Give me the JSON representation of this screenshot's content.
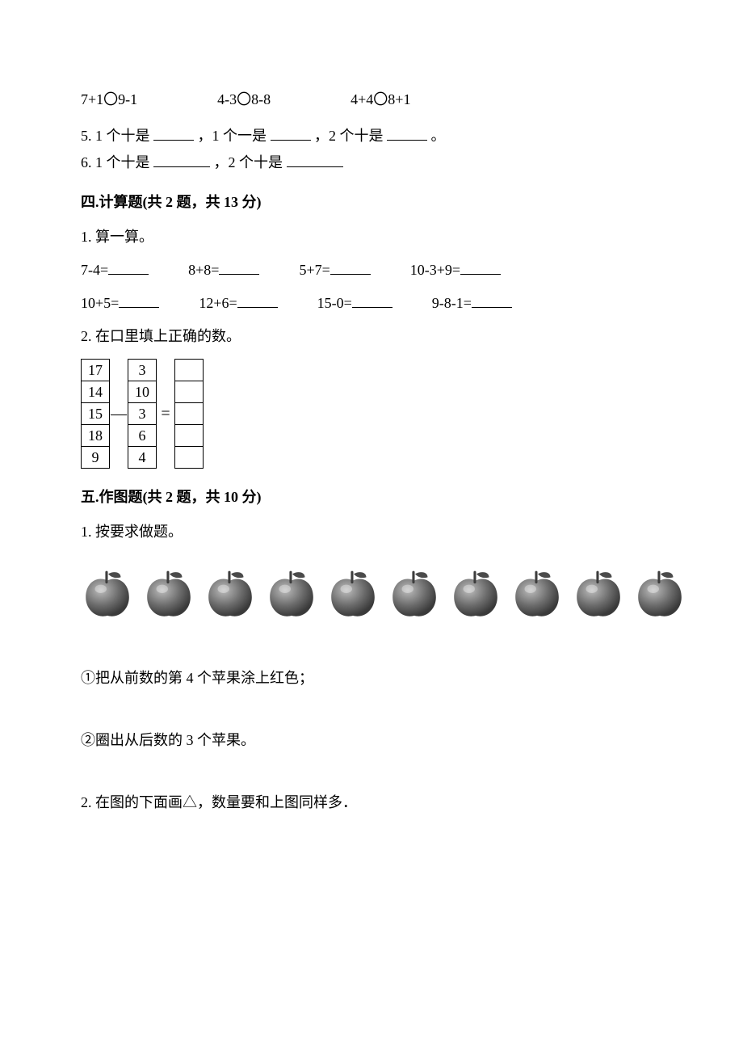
{
  "topline": {
    "e1": "7+1〇9-1",
    "e2": "4-3〇8-8",
    "e3": "4+4〇8+1"
  },
  "fill5": {
    "prefix": "5.",
    "p1": "1 个十是",
    "p2": "，1 个一是",
    "p3": "，2 个十是",
    "suffix": "。"
  },
  "fill6": {
    "prefix": "6.",
    "p1": "1 个十是",
    "p2": "，2 个十是"
  },
  "sec4_heading": "四.计算题(共 2 题，共 13 分)",
  "sec4_q1": "1. 算一算。",
  "sec4_row1": {
    "a": "7-4=",
    "b": "8+8=",
    "c": "5+7=",
    "d": "10-3+9="
  },
  "sec4_row2": {
    "a": "10+5=",
    "b": "12+6=",
    "c": "15-0=",
    "d": "9-8-1="
  },
  "sec4_q2": "2. 在口里填上正确的数。",
  "subtable": {
    "colA": [
      "17",
      "14",
      "15",
      "18",
      "9"
    ],
    "minus": "—",
    "colB": [
      "3",
      "10",
      "3",
      "6",
      "4"
    ],
    "equals": "=",
    "colC": [
      "",
      "",
      "",
      "",
      ""
    ]
  },
  "sec5_heading": "五.作图题(共 2 题，共 10 分)",
  "sec5_q1": "1. 按要求做题。",
  "apples_count": 10,
  "apple_style": {
    "body": "#6b6b6b",
    "hi": "#bdbdbd",
    "stem": "#3d3d3d",
    "leaf": "#4a4a4a"
  },
  "sec5_q1a": "①把从前数的第 4 个苹果涂上红色；",
  "sec5_q1b": "②圈出从后数的 3 个苹果。",
  "sec5_q2": "2. 在图的下面画△，数量要和上图同样多．"
}
